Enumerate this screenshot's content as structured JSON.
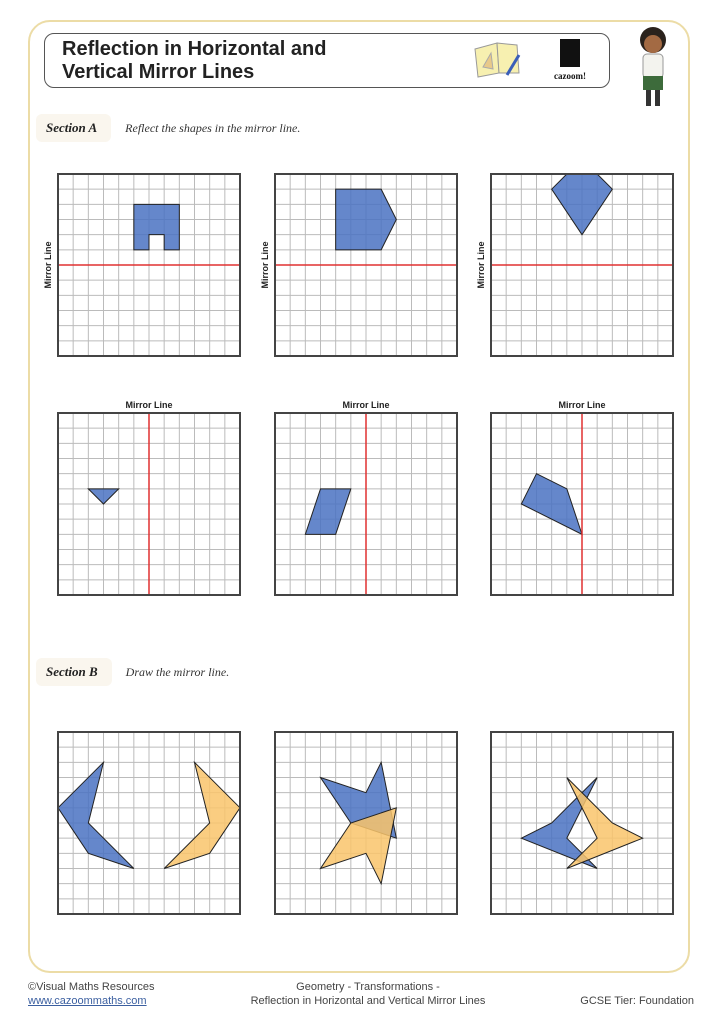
{
  "header": {
    "title_line1": "Reflection in Horizontal and",
    "title_line2": "Vertical Mirror Lines",
    "logo_text": "cazoom!"
  },
  "section_a": {
    "label": "Section A",
    "instruction": "Reflect the shapes in the mirror line.",
    "mirror_label": "Mirror Line"
  },
  "section_b": {
    "label": "Section B",
    "instruction": "Draw the mirror line."
  },
  "colors": {
    "blue": "#4a72c2",
    "orange": "#f9c46b",
    "mirror": "#e03030",
    "grid": "#bbbbbb",
    "border": "#444444",
    "frame": "#ecdca6"
  },
  "grid_size": 12,
  "questions_a": [
    {
      "mirror": {
        "orientation": "horizontal",
        "at": 6
      },
      "shapes": [
        [
          [
            5,
            2
          ],
          [
            8,
            2
          ],
          [
            8,
            5
          ],
          [
            7,
            5
          ],
          [
            7,
            4
          ],
          [
            6,
            4
          ],
          [
            6,
            5
          ],
          [
            5,
            5
          ]
        ]
      ]
    },
    {
      "mirror": {
        "orientation": "horizontal",
        "at": 6
      },
      "shapes": [
        [
          [
            4,
            1
          ],
          [
            7,
            1
          ],
          [
            8,
            3
          ],
          [
            7,
            5
          ],
          [
            4,
            5
          ]
        ]
      ]
    },
    {
      "mirror": {
        "orientation": "horizontal",
        "at": 6
      },
      "shapes": [
        [
          [
            4,
            1
          ],
          [
            5,
            0
          ],
          [
            7,
            0
          ],
          [
            8,
            1
          ],
          [
            6,
            4
          ]
        ]
      ]
    },
    {
      "mirror": {
        "orientation": "vertical",
        "at": 6
      },
      "shapes": [
        [
          [
            2,
            5
          ],
          [
            4,
            5
          ],
          [
            3,
            6
          ]
        ]
      ]
    },
    {
      "mirror": {
        "orientation": "vertical",
        "at": 6
      },
      "shapes": [
        [
          [
            3,
            5
          ],
          [
            5,
            5
          ],
          [
            4,
            8
          ],
          [
            2,
            8
          ]
        ]
      ]
    },
    {
      "mirror": {
        "orientation": "vertical",
        "at": 6
      },
      "shapes": [
        [
          [
            3,
            4
          ],
          [
            5,
            5
          ],
          [
            6,
            8
          ],
          [
            2,
            6
          ]
        ]
      ]
    }
  ],
  "questions_b": [
    {
      "blue": [
        [
          3,
          2
        ],
        [
          0,
          5
        ],
        [
          2,
          8
        ],
        [
          5,
          9
        ],
        [
          2,
          6
        ]
      ],
      "orange": [
        [
          9,
          2
        ],
        [
          12,
          5
        ],
        [
          10,
          8
        ],
        [
          7,
          9
        ],
        [
          10,
          6
        ]
      ]
    },
    {
      "blue": [
        [
          3,
          3
        ],
        [
          6,
          4
        ],
        [
          7,
          2
        ],
        [
          8,
          7
        ],
        [
          5,
          6
        ]
      ],
      "orange": [
        [
          3,
          9
        ],
        [
          6,
          8
        ],
        [
          7,
          10
        ],
        [
          8,
          5
        ],
        [
          5,
          6
        ]
      ]
    },
    {
      "blue": [
        [
          7,
          3
        ],
        [
          4,
          6
        ],
        [
          2,
          7
        ],
        [
          7,
          9
        ],
        [
          5,
          7
        ]
      ],
      "orange": [
        [
          5,
          3
        ],
        [
          8,
          6
        ],
        [
          10,
          7
        ],
        [
          5,
          9
        ],
        [
          7,
          7
        ]
      ]
    }
  ],
  "footer": {
    "copyright": "©Visual Maths Resources",
    "website": "www.cazoommaths.com",
    "topic_line1": "Geometry - Transformations -",
    "topic_line2": "Reflection in Horizontal and Vertical Mirror Lines",
    "tier": "GCSE Tier: Foundation"
  }
}
